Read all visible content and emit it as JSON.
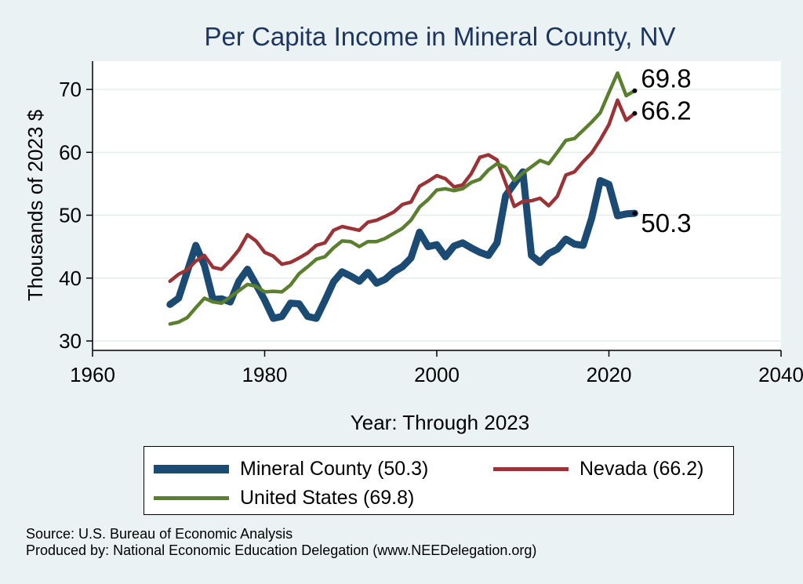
{
  "colors": {
    "background": "#eaf2f3",
    "plot_background": "#ffffff",
    "title": "#1e3560",
    "mineral": "#1b4a73",
    "nevada": "#9b3336",
    "united_states": "#5a7f2f"
  },
  "chart_data": {
    "type": "line",
    "title": "Per Capita Income in Mineral County, NV",
    "xlabel": "Year: Through 2023",
    "ylabel": "Thousands of 2023 $",
    "xlim": [
      1960,
      2040
    ],
    "ylim": [
      28.5,
      74.5
    ],
    "xticks": [
      1960,
      1980,
      2000,
      2020,
      2040
    ],
    "yticks": [
      30,
      40,
      50,
      60,
      70
    ],
    "grid": "horizontal",
    "legend_position": "bottom",
    "x": [
      1969,
      1970,
      1971,
      1972,
      1973,
      1974,
      1975,
      1976,
      1977,
      1978,
      1979,
      1980,
      1981,
      1982,
      1983,
      1984,
      1985,
      1986,
      1987,
      1988,
      1989,
      1990,
      1991,
      1992,
      1993,
      1994,
      1995,
      1996,
      1997,
      1998,
      1999,
      2000,
      2001,
      2002,
      2003,
      2004,
      2005,
      2006,
      2007,
      2008,
      2009,
      2010,
      2011,
      2012,
      2013,
      2014,
      2015,
      2016,
      2017,
      2018,
      2019,
      2020,
      2021,
      2022,
      2023
    ],
    "series": [
      {
        "name": "Mineral County (50.3)",
        "key": "mineral",
        "values": [
          35.8,
          36.8,
          41.0,
          45.2,
          42.0,
          36.6,
          36.7,
          36.2,
          39.5,
          41.4,
          39.0,
          36.5,
          33.6,
          33.9,
          36.0,
          35.9,
          33.9,
          33.6,
          36.4,
          39.4,
          41.0,
          40.3,
          39.5,
          40.9,
          39.2,
          39.8,
          41.0,
          41.8,
          43.2,
          47.3,
          45.0,
          45.3,
          43.4,
          45.1,
          45.6,
          44.8,
          44.1,
          43.6,
          45.6,
          53.1,
          55.0,
          56.9,
          43.6,
          42.5,
          43.9,
          44.6,
          46.2,
          45.4,
          45.2,
          49.5,
          55.5,
          54.9,
          49.9,
          50.2,
          50.3
        ]
      },
      {
        "name": "Nevada (66.2)",
        "key": "nevada",
        "values": [
          39.5,
          40.6,
          41.3,
          42.7,
          43.6,
          41.7,
          41.4,
          42.8,
          44.5,
          46.9,
          45.9,
          44.1,
          43.5,
          42.2,
          42.5,
          43.2,
          44.0,
          45.2,
          45.6,
          47.6,
          48.2,
          47.9,
          47.6,
          48.9,
          49.2,
          49.8,
          50.5,
          51.7,
          52.1,
          54.6,
          55.4,
          56.3,
          55.8,
          54.5,
          54.8,
          56.6,
          59.2,
          59.6,
          58.8,
          55.1,
          51.4,
          52.2,
          52.3,
          52.7,
          51.5,
          53.0,
          56.4,
          56.9,
          58.5,
          59.9,
          62.0,
          64.4,
          68.3,
          65.1,
          66.2
        ]
      },
      {
        "name": "United States (69.8)",
        "key": "united_states",
        "values": [
          32.7,
          33.0,
          33.7,
          35.3,
          36.8,
          36.2,
          36.0,
          37.0,
          38.0,
          39.0,
          38.7,
          37.8,
          37.9,
          37.8,
          38.9,
          40.7,
          41.8,
          43.0,
          43.4,
          44.8,
          45.9,
          45.8,
          45.0,
          45.8,
          45.8,
          46.3,
          47.1,
          47.9,
          49.2,
          51.3,
          52.5,
          54.0,
          54.2,
          53.9,
          54.2,
          55.2,
          55.7,
          57.2,
          58.2,
          57.6,
          55.5,
          56.7,
          57.7,
          58.7,
          58.2,
          60.0,
          61.9,
          62.2,
          63.5,
          64.8,
          66.3,
          69.5,
          72.6,
          69.0,
          69.8
        ]
      }
    ],
    "end_labels": {
      "mineral": "50.3",
      "nevada": "66.2",
      "united_states": "69.8"
    }
  },
  "legend": {
    "mineral": "Mineral County (50.3)",
    "nevada": "Nevada (66.2)",
    "united_states": "United States (69.8)"
  },
  "notes": {
    "source": "Source: U.S. Bureau of Economic Analysis",
    "produced_by": "Produced by: National Economic Education Delegation (www.NEEDelegation.org)"
  }
}
